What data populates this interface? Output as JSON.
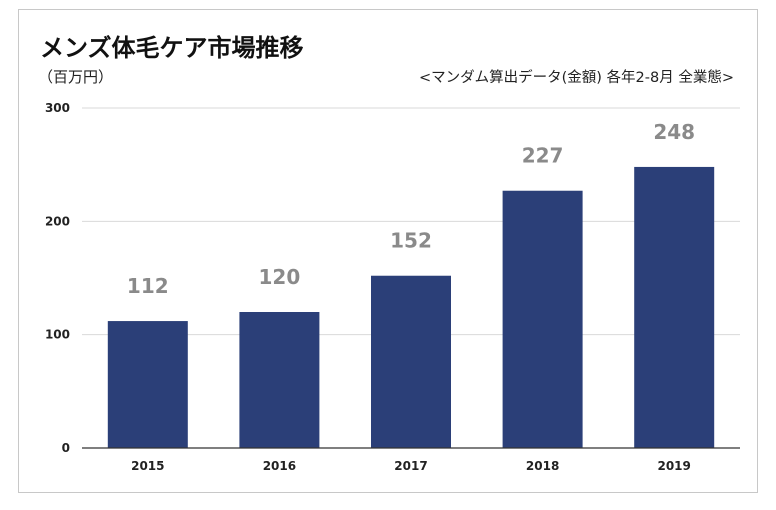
{
  "chart_data": {
    "type": "bar",
    "title": "メンズ体毛ケア市場推移",
    "unit_label": "（百万円）",
    "note": "<マンダム算出データ(金額) 各年2-8月 全業態>",
    "categories": [
      "2015",
      "2016",
      "2017",
      "2018",
      "2019"
    ],
    "values": [
      112,
      120,
      152,
      227,
      248
    ],
    "ylim": [
      0,
      300
    ],
    "yticks": [
      0,
      100,
      200,
      300
    ],
    "grid": true,
    "legend": "none",
    "colors": {
      "bar": "#2b3f78",
      "gridline": "#d9d9d9",
      "axis": "#333333",
      "data_label": "#8a8a8a"
    }
  }
}
